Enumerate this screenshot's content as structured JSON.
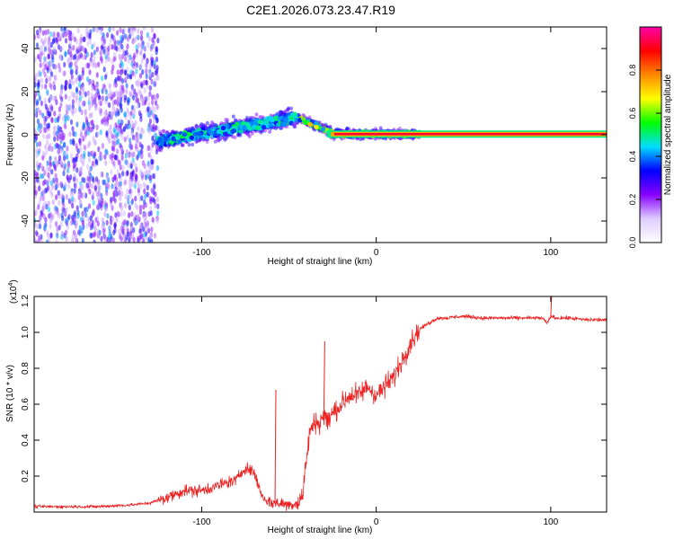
{
  "figure_title": "C2E1.2026.073.23.47.R19",
  "colors": {
    "trace": "#ee2222",
    "frame": "#000000",
    "colorbar_stops": [
      "#ffffff",
      "#ddccff",
      "#8800ff",
      "#0000ff",
      "#00ddff",
      "#00ff00",
      "#ffff00",
      "#ff8800",
      "#ff0000",
      "#ff00aa"
    ]
  },
  "chart_data": [
    {
      "type": "heatmap",
      "name": "spectrogram",
      "title": "C2E1.2026.073.23.47.R19",
      "xlabel": "Height of straight line (km)",
      "ylabel": "Frequency (Hz)",
      "xlim": [
        -196,
        132
      ],
      "ylim": [
        -50,
        50
      ],
      "xticks": [
        -100,
        0,
        100
      ],
      "yticks": [
        -40,
        -20,
        0,
        20,
        40
      ],
      "colorbar": {
        "label": "Normalized spectral amplitude",
        "range": [
          0,
          1
        ],
        "ticks": [
          "0.0",
          "0.2",
          "0.4",
          "0.6",
          "0.8"
        ]
      },
      "features": [
        {
          "region": "noise",
          "x_range": [
            -196,
            -125
          ],
          "frequency_range": [
            -50,
            50
          ],
          "amplitude": "low, scattered"
        },
        {
          "region": "rising band",
          "x_range": [
            -125,
            -45
          ],
          "frequency_center_start": -3,
          "frequency_center_end": 8,
          "amplitude": "0.3-0.5"
        },
        {
          "region": "converging",
          "x_range": [
            -45,
            -25
          ],
          "frequency_center_start": 6,
          "frequency_center_end": 1,
          "amplitude": "0.4-0.8"
        },
        {
          "region": "stable line",
          "x_range": [
            -25,
            132
          ],
          "frequency_center": 0,
          "amplitude": "0.9-1.0"
        }
      ]
    },
    {
      "type": "line",
      "name": "snr",
      "xlabel": "Height of straight line (km)",
      "ylabel": "SNR (10 * v/v)",
      "yscale_label": "(x10",
      "yscale_exp": "4",
      "xlim": [
        -196,
        132
      ],
      "ylim": [
        0,
        1.2
      ],
      "xticks": [
        -100,
        0,
        100
      ],
      "yticks": [
        "0.2",
        "0.4",
        "0.6",
        "0.8",
        "1.0",
        "1.2"
      ],
      "series": [
        {
          "name": "SNR",
          "x": [
            -196,
            -180,
            -160,
            -140,
            -130,
            -120,
            -110,
            -100,
            -90,
            -80,
            -75,
            -70,
            -65,
            -60,
            -55,
            -50,
            -45,
            -42,
            -40,
            -38,
            -35,
            -32,
            -30,
            -28,
            -25,
            -20,
            -15,
            -10,
            -5,
            0,
            5,
            10,
            15,
            20,
            25,
            30,
            35,
            40,
            50,
            60,
            70,
            80,
            90,
            95,
            98,
            100,
            103,
            110,
            120,
            132
          ],
          "y": [
            0.03,
            0.03,
            0.03,
            0.04,
            0.05,
            0.08,
            0.12,
            0.12,
            0.15,
            0.18,
            0.25,
            0.22,
            0.08,
            0.05,
            0.05,
            0.04,
            0.05,
            0.1,
            0.3,
            0.45,
            0.5,
            0.5,
            0.55,
            0.5,
            0.55,
            0.6,
            0.65,
            0.65,
            0.7,
            0.65,
            0.7,
            0.75,
            0.85,
            0.95,
            1.02,
            1.05,
            1.08,
            1.08,
            1.09,
            1.08,
            1.08,
            1.08,
            1.08,
            1.08,
            1.05,
            1.09,
            1.08,
            1.08,
            1.07,
            1.07
          ]
        }
      ],
      "annotations": [
        {
          "x": -58,
          "y": 0.68,
          "text": "spike"
        },
        {
          "x": -30,
          "y": 0.95,
          "text": "spike"
        },
        {
          "x": 100,
          "y": 1.2,
          "text": "spike"
        }
      ]
    }
  ]
}
